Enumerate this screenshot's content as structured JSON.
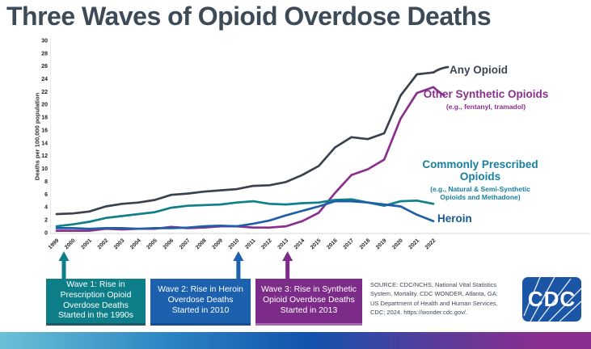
{
  "title": "Three Waves of Opioid Overdose Deaths",
  "y_axis_label": "Deaths per 100,000 population",
  "legend": {
    "any_opioid": {
      "label": "Any Opioid"
    },
    "other_synthetic": {
      "label": "Other Synthetic Opioids",
      "sublabel": "(e.g., fentanyl, tramadol)"
    },
    "commonly_prescribed": {
      "label": "Commonly Prescribed\nOpioids",
      "sublabel": "(e.g., Natural & Semi-Synthetic\nOpioids and Methadone)"
    },
    "heroin": {
      "label": "Heroin"
    }
  },
  "waves": [
    {
      "label": "Wave 1: Rise in\nPrescription Opioid\nOverdose Deaths\nStarted in the 1990s",
      "year": 1999,
      "color": "#0e7e89"
    },
    {
      "label": "Wave 2: Rise in Heroin\nOverdose Deaths\nStarted in 2010",
      "year": 2010,
      "color": "#1c60ae"
    },
    {
      "label": "Wave 3: Rise in Synthetic\nOpioid Overdose Deaths\nStarted in 2013",
      "year": 2013,
      "color": "#7d2b88"
    }
  ],
  "source": {
    "lines": [
      "SOURCE: CDC/NCHS, National Vital Statistics",
      "System, Mortality. CDC WONDER, Atlanta, GA:",
      "US Department of Health and Human Services,",
      "CDC; 2024. https://wonder.cdc.gov/."
    ]
  },
  "cdc_logo_text": "CDC",
  "chart_data": {
    "type": "line",
    "title": "Three Waves of Opioid Overdose Deaths",
    "xlabel": "",
    "ylabel": "Deaths per 100,000 population",
    "ylim": [
      0,
      30
    ],
    "yticks": [
      0,
      2,
      4,
      6,
      8,
      10,
      12,
      14,
      16,
      18,
      20,
      22,
      24,
      26,
      28,
      30
    ],
    "grid": false,
    "legend_position": "right",
    "x": [
      1999,
      2000,
      2001,
      2002,
      2003,
      2004,
      2005,
      2006,
      2007,
      2008,
      2009,
      2010,
      2011,
      2012,
      2013,
      2014,
      2015,
      2016,
      2017,
      2018,
      2019,
      2020,
      2021,
      2022
    ],
    "series": [
      {
        "id": "any-opioid",
        "name": "Any Opioid",
        "color": "#3a434c",
        "values": [
          2.9,
          3.0,
          3.3,
          4.1,
          4.5,
          4.7,
          5.1,
          5.9,
          6.1,
          6.4,
          6.6,
          6.8,
          7.3,
          7.4,
          7.9,
          9.0,
          10.4,
          13.3,
          14.9,
          14.6,
          15.5,
          21.4,
          24.7,
          25.0
        ]
      },
      {
        "id": "other-synthetic-opioids",
        "name": "Other Synthetic Opioids",
        "color": "#8b2f8f",
        "values": [
          0.3,
          0.3,
          0.3,
          0.6,
          0.5,
          0.6,
          0.6,
          0.9,
          0.7,
          0.8,
          1.0,
          1.0,
          0.8,
          0.8,
          1.0,
          1.8,
          3.1,
          6.2,
          9.0,
          9.9,
          11.4,
          17.8,
          21.8,
          22.7
        ]
      },
      {
        "id": "commonly-prescribed-opioids",
        "name": "Commonly Prescribed Opioids",
        "color": "#0f8089",
        "values": [
          1.0,
          1.3,
          1.7,
          2.3,
          2.6,
          2.9,
          3.2,
          3.9,
          4.2,
          4.3,
          4.4,
          4.7,
          4.9,
          4.5,
          4.4,
          4.6,
          4.7,
          5.1,
          5.2,
          4.7,
          4.2,
          4.9,
          5.0,
          4.5
        ]
      },
      {
        "id": "heroin",
        "name": "Heroin",
        "color": "#1f5fa8",
        "values": [
          0.7,
          0.7,
          0.6,
          0.7,
          0.7,
          0.6,
          0.7,
          0.7,
          0.8,
          1.0,
          1.1,
          1.0,
          1.4,
          1.9,
          2.7,
          3.4,
          4.1,
          4.9,
          4.9,
          4.7,
          4.4,
          4.1,
          2.8,
          1.8
        ]
      }
    ]
  }
}
